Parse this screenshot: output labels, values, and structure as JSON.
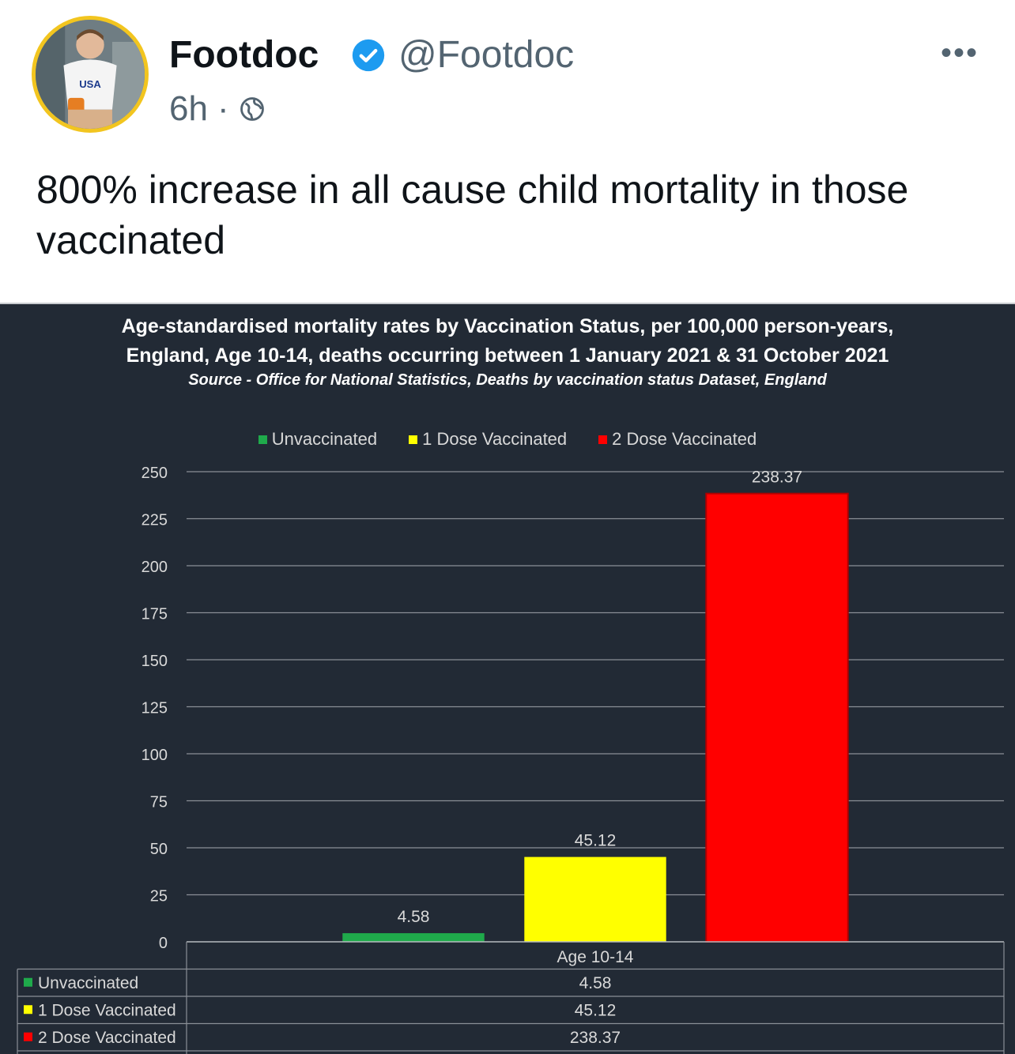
{
  "post": {
    "author_name": "Footdoc",
    "handle": "@Footdoc",
    "time": "6h",
    "separator": "·",
    "more_label": "•••",
    "text": "800% increase in all cause child mortality in those vaccinated",
    "avatar_shirt_text": "USA"
  },
  "colors": {
    "verified": "#1d9bf0",
    "avatar_border": "#f2c51f",
    "chart_background": "#222a35"
  },
  "chart_data": {
    "type": "bar",
    "title": "Age-standardised mortality rates by Vaccination Status, per 100,000 person-years, England, Age 10-14, deaths occurring between 1 January 2021 & 31 October 2021",
    "title_line1": "Age-standardised mortality rates by Vaccination Status, per 100,000 person-years,",
    "title_line2": "England, Age 10-14, deaths occurring between 1 January 2021 & 31 October 2021",
    "subtitle": "Source - Office for National Statistics, Deaths by vaccination status Dataset, England",
    "categories": [
      "Age 10-14"
    ],
    "series": [
      {
        "name": "Unvaccinated",
        "values": [
          4.58
        ],
        "label": "4.58",
        "color": "#1faa4b"
      },
      {
        "name": "1 Dose Vaccinated",
        "values": [
          45.12
        ],
        "label": "45.12",
        "color": "#ffff00"
      },
      {
        "name": "2 Dose Vaccinated",
        "values": [
          238.37
        ],
        "label": "238.37",
        "color": "#ff0000"
      }
    ],
    "ylim": [
      0,
      250
    ],
    "yticks": [
      0,
      25,
      50,
      75,
      100,
      125,
      150,
      175,
      200,
      225,
      250
    ],
    "ytick_labels": [
      "0",
      "25",
      "50",
      "75",
      "100",
      "125",
      "150",
      "175",
      "200",
      "225",
      "250"
    ],
    "xlabel": "",
    "ylabel": "",
    "grid": true,
    "legend_position": "top",
    "data_table": true
  }
}
